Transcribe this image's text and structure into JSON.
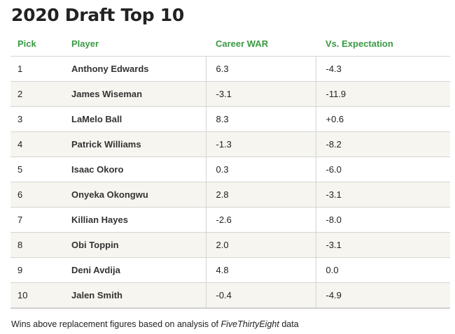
{
  "chart_data": {
    "type": "table",
    "title": "2020 Draft Top 10",
    "columns": [
      "Pick",
      "Player",
      "Career WAR",
      "Vs. Expectation"
    ],
    "rows": [
      {
        "pick": "1",
        "player": "Anthony Edwards",
        "war": "6.3",
        "vs": "-4.3"
      },
      {
        "pick": "2",
        "player": "James Wiseman",
        "war": "-3.1",
        "vs": "-11.9"
      },
      {
        "pick": "3",
        "player": "LaMelo Ball",
        "war": "8.3",
        "vs": "+0.6"
      },
      {
        "pick": "4",
        "player": "Patrick Williams",
        "war": "-1.3",
        "vs": "-8.2"
      },
      {
        "pick": "5",
        "player": "Isaac Okoro",
        "war": "0.3",
        "vs": "-6.0"
      },
      {
        "pick": "6",
        "player": "Onyeka Okongwu",
        "war": "2.8",
        "vs": "-3.1"
      },
      {
        "pick": "7",
        "player": "Killian Hayes",
        "war": "-2.6",
        "vs": "-8.0"
      },
      {
        "pick": "8",
        "player": "Obi Toppin",
        "war": "2.0",
        "vs": "-3.1"
      },
      {
        "pick": "9",
        "player": "Deni Avdija",
        "war": "4.8",
        "vs": "0.0"
      },
      {
        "pick": "10",
        "player": "Jalen Smith",
        "war": "-0.4",
        "vs": "-4.9"
      }
    ],
    "footnote": {
      "prefix": "Wins above replacement figures based on analysis of ",
      "source": "FiveThirtyEight",
      "suffix": " data"
    }
  },
  "colors": {
    "header_text": "#3a9a44",
    "stripe": "#f6f5ef",
    "rule": "#d4d4d4"
  }
}
